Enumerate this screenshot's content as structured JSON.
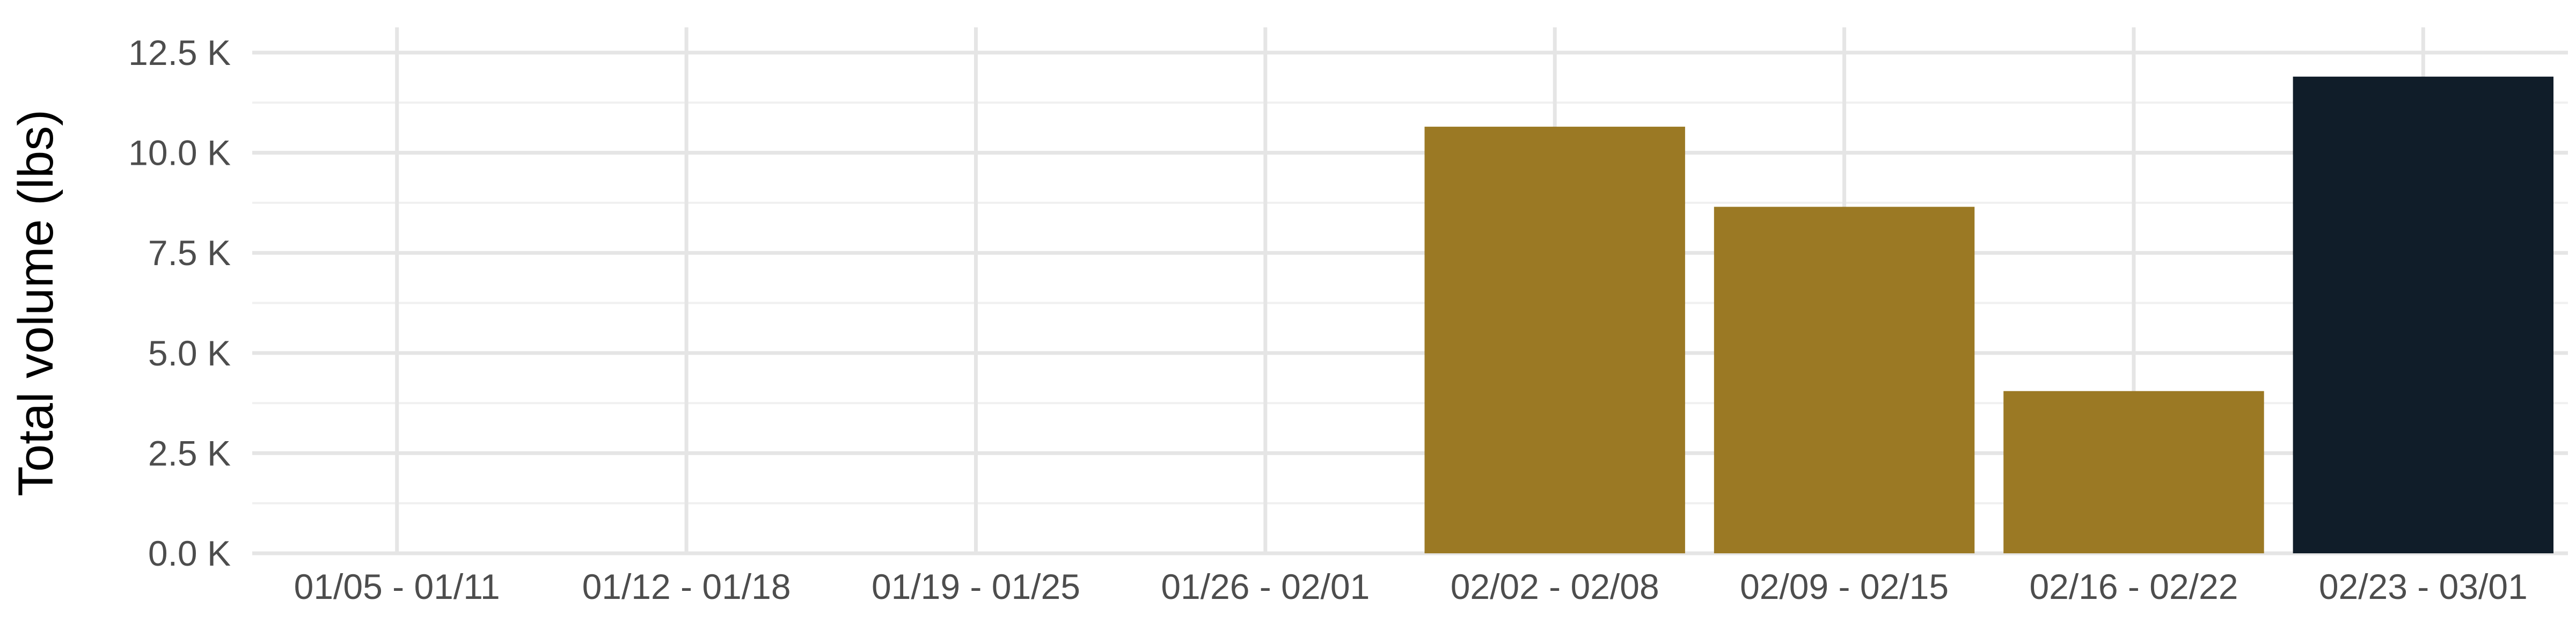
{
  "chart_data": {
    "type": "bar",
    "title": "",
    "xlabel": "",
    "ylabel": "Total volume (lbs)",
    "categories": [
      "01/05 - 01/11",
      "01/12 - 01/18",
      "01/19 - 01/25",
      "01/26 - 02/01",
      "02/02 - 02/08",
      "02/09 - 02/15",
      "02/16 - 02/22",
      "02/23 - 03/01"
    ],
    "values": [
      0,
      0,
      0,
      0,
      10650,
      8650,
      4050,
      11900
    ],
    "bar_colors": [
      "#9b7924",
      "#9b7924",
      "#9b7924",
      "#9b7924",
      "#9b7924",
      "#9b7924",
      "#9b7924",
      "#101d29"
    ],
    "ylim": [
      0,
      12500
    ],
    "yticks": [
      0,
      2500,
      5000,
      7500,
      10000,
      12500
    ],
    "ytick_labels": [
      "0.0 K",
      "2.5 K",
      "5.0 K",
      "7.5 K",
      "10.0 K",
      "12.5 K"
    ],
    "grid": true,
    "legend": "none"
  }
}
